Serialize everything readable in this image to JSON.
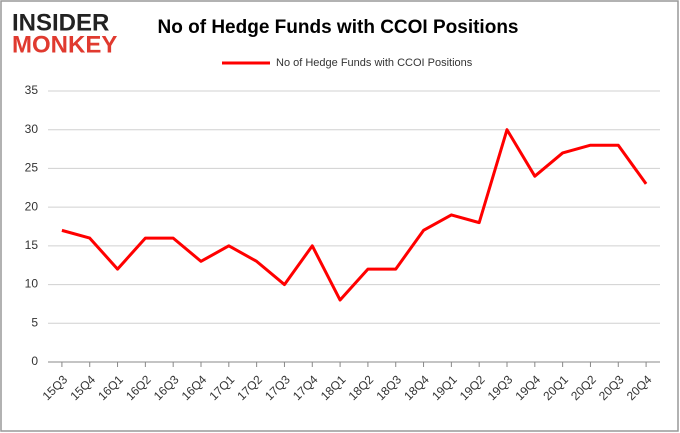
{
  "logo": {
    "top": "INSIDER",
    "bottom": "MONKEY"
  },
  "chart_data": {
    "type": "line",
    "title": "No of Hedge Funds with CCOI Positions",
    "categories": [
      "15Q3",
      "15Q4",
      "16Q1",
      "16Q2",
      "16Q3",
      "16Q4",
      "17Q1",
      "17Q2",
      "17Q3",
      "17Q4",
      "18Q1",
      "18Q2",
      "18Q3",
      "18Q4",
      "19Q1",
      "19Q2",
      "19Q3",
      "19Q4",
      "20Q1",
      "20Q2",
      "20Q3",
      "20Q4"
    ],
    "series": [
      {
        "name": "No of Hedge Funds with CCOI Positions",
        "color": "#ff0000",
        "values": [
          17,
          16,
          12,
          16,
          16,
          13,
          15,
          13,
          10,
          15,
          8,
          12,
          12,
          17,
          19,
          18,
          30,
          24,
          27,
          28,
          28,
          23
        ]
      }
    ],
    "ylim": [
      0,
      35
    ],
    "yticks": [
      0,
      5,
      10,
      15,
      20,
      25,
      30,
      35
    ],
    "grid": true,
    "legend": "top"
  }
}
